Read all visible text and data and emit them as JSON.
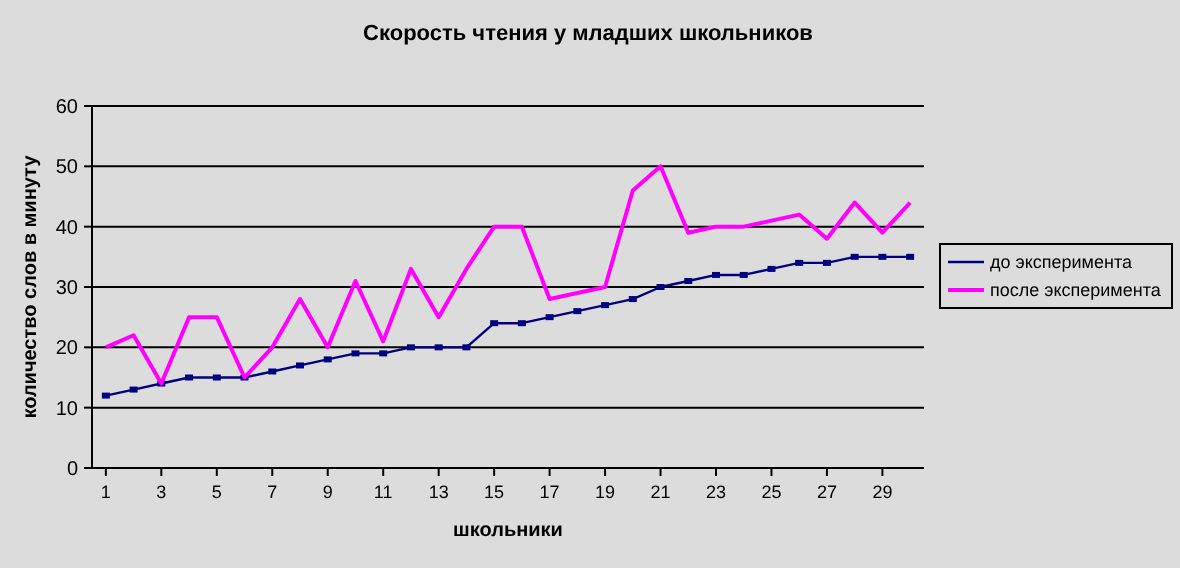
{
  "chart_data": {
    "type": "line",
    "title": "Скорость чтения у младших школьников",
    "xlabel": "школьники",
    "ylabel": "количество слов в минуту",
    "x": [
      1,
      2,
      3,
      4,
      5,
      6,
      7,
      8,
      9,
      10,
      11,
      12,
      13,
      14,
      15,
      16,
      17,
      18,
      19,
      20,
      21,
      22,
      23,
      24,
      25,
      26,
      27,
      28,
      29,
      30
    ],
    "xlim": [
      0.5,
      30.5
    ],
    "xticks": [
      1,
      3,
      5,
      7,
      9,
      11,
      13,
      15,
      17,
      19,
      21,
      23,
      25,
      27,
      29
    ],
    "series": [
      {
        "name": "до эксперимента",
        "color": "#000080",
        "marker": "square",
        "values": [
          12,
          13,
          14,
          15,
          15,
          15,
          16,
          17,
          18,
          19,
          19,
          20,
          20,
          20,
          24,
          24,
          25,
          26,
          27,
          28,
          30,
          31,
          32,
          32,
          33,
          34,
          34,
          35,
          35,
          35
        ]
      },
      {
        "name": "после эксперимента",
        "color": "#ff00ff",
        "marker": "none",
        "values": [
          20,
          22,
          14,
          25,
          25,
          15,
          20,
          28,
          20,
          31,
          21,
          33,
          25,
          33,
          40,
          40,
          28,
          29,
          30,
          46,
          50,
          39,
          40,
          40,
          41,
          42,
          38,
          44,
          39,
          44
        ]
      }
    ],
    "ylim": [
      0,
      60
    ],
    "yticks": [
      0,
      10,
      20,
      30,
      40,
      50,
      60
    ],
    "grid": "y",
    "legend": "right"
  }
}
